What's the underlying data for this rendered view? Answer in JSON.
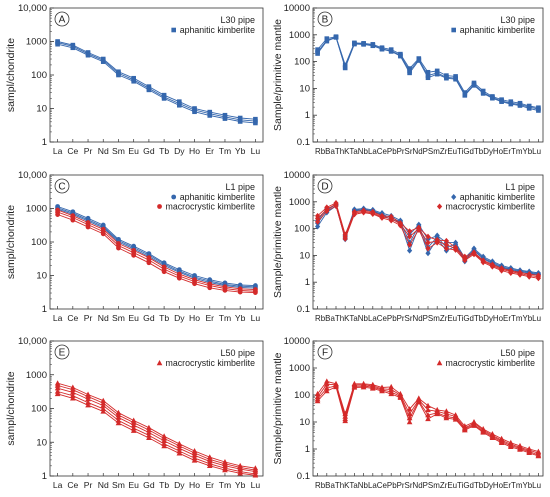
{
  "chart_data": [
    {
      "type": "line",
      "panel": "A",
      "pipe": "L30 pipe",
      "ylabel": "sampl/chondrite",
      "categories": [
        "La",
        "Ce",
        "Pr",
        "Nd",
        "Sm",
        "Eu",
        "Gd",
        "Tb",
        "Dy",
        "Ho",
        "Er",
        "Tm",
        "Yb",
        "Lu"
      ],
      "ylim": [
        1,
        10000
      ],
      "yscale": "log",
      "ytick_labels": [
        "1",
        "10",
        "100",
        "1000",
        "10,000"
      ],
      "legend": [
        {
          "label": "aphanitic kimberlite",
          "marker": "square",
          "color": "#3567ad"
        }
      ],
      "series": [
        {
          "group": "aphanitic kimberlite",
          "values": [
            1000,
            780,
            470,
            300,
            125,
            80,
            45,
            25,
            16,
            10,
            7.8,
            6.3,
            5.2,
            4.8
          ]
        },
        {
          "group": "aphanitic kimberlite",
          "values": [
            920,
            720,
            430,
            275,
            112,
            72,
            40,
            22,
            14,
            9,
            7,
            5.6,
            4.6,
            4.2
          ]
        },
        {
          "group": "aphanitic kimberlite",
          "values": [
            830,
            650,
            390,
            250,
            100,
            65,
            36,
            20,
            12.5,
            8,
            6.2,
            5,
            4.1,
            3.7
          ]
        }
      ]
    },
    {
      "type": "line",
      "panel": "B",
      "pipe": "L30 pipe",
      "ylabel": "Sample/primitive mantle",
      "categories": [
        "Rb",
        "Ba",
        "Th",
        "K",
        "Ta",
        "Nb",
        "La",
        "Ce",
        "Pb",
        "Pr",
        "Sr",
        "Nd",
        "P",
        "Sm",
        "Zr",
        "Eu",
        "Ti",
        "Gd",
        "Tb",
        "Dy",
        "Ho",
        "Er",
        "Tm",
        "Yb",
        "Lu"
      ],
      "category_label_text": "RbBaThKTaNbLaCePbPrSrNdPSmZrEuTiGdTbDyHoErTmYbLu",
      "ylim": [
        0.1,
        10000
      ],
      "yscale": "log",
      "ytick_labels": [
        "0.1",
        "1",
        "10",
        "100",
        "1000",
        "10000"
      ],
      "legend": [
        {
          "label": "aphanitic kimberlite",
          "marker": "square",
          "color": "#3567ad"
        }
      ],
      "series": [
        {
          "group": "aphanitic kimberlite",
          "values": [
            280,
            720,
            850,
            75,
            500,
            480,
            440,
            330,
            280,
            190,
            55,
            130,
            40,
            45,
            30,
            28,
            7,
            16,
            8,
            5,
            3.8,
            3.2,
            2.8,
            2.2,
            1.9
          ]
        },
        {
          "group": "aphanitic kimberlite",
          "values": [
            230,
            620,
            820,
            62,
            470,
            460,
            410,
            300,
            250,
            170,
            45,
            120,
            30,
            38,
            26,
            24,
            6,
            14,
            7,
            4.6,
            3.4,
            2.8,
            2.5,
            2,
            1.7
          ]
        },
        {
          "group": "aphanitic kimberlite",
          "values": [
            200,
            580,
            800,
            58,
            450,
            440,
            390,
            290,
            240,
            160,
            38,
            110,
            25,
            34,
            24,
            22,
            5.5,
            13,
            6.5,
            4.3,
            3.2,
            2.6,
            2.3,
            1.8,
            1.5
          ]
        }
      ]
    },
    {
      "type": "line",
      "panel": "C",
      "pipe": "L1 pipe",
      "ylabel": "sampl/chondrite",
      "categories": [
        "La",
        "Ce",
        "Pr",
        "Nd",
        "Sm",
        "Eu",
        "Gd",
        "Tb",
        "Dy",
        "Ho",
        "Er",
        "Tm",
        "Yb",
        "Lu"
      ],
      "ylim": [
        1,
        10000
      ],
      "yscale": "log",
      "ytick_labels": [
        "1",
        "10",
        "100",
        "1000",
        "10,000"
      ],
      "legend": [
        {
          "label": "aphanitic kimberlite",
          "marker": "circle",
          "color": "#3567ad"
        },
        {
          "label": "macrocrystic kimberlite",
          "marker": "circle",
          "color": "#d42a2a"
        }
      ],
      "series": [
        {
          "group": "aphanitic kimberlite",
          "values": [
            1150,
            800,
            510,
            320,
            120,
            75,
            45,
            24,
            15,
            10,
            7.5,
            6,
            5.2,
            5
          ]
        },
        {
          "group": "aphanitic kimberlite",
          "values": [
            1050,
            730,
            460,
            290,
            110,
            68,
            41,
            22,
            13.5,
            9,
            6.8,
            5.4,
            4.8,
            4.6
          ]
        },
        {
          "group": "aphanitic kimberlite",
          "values": [
            960,
            670,
            420,
            265,
            100,
            62,
            37,
            20,
            12.5,
            8.3,
            6.2,
            5,
            4.4,
            4.2
          ]
        },
        {
          "group": "macrocrystic kimberlite",
          "values": [
            900,
            610,
            380,
            240,
            90,
            56,
            34,
            18,
            11,
            7.5,
            5.6,
            4.6,
            4,
            3.8
          ]
        },
        {
          "group": "macrocrystic kimberlite",
          "values": [
            780,
            540,
            330,
            205,
            78,
            48,
            29,
            15.5,
            9.6,
            6.6,
            5,
            4.1,
            3.6,
            3.4
          ]
        },
        {
          "group": "macrocrystic kimberlite",
          "values": [
            660,
            450,
            280,
            175,
            66,
            40,
            24,
            13,
            8.3,
            5.7,
            4.3,
            3.6,
            3.2,
            3.1
          ]
        }
      ]
    },
    {
      "type": "line",
      "panel": "D",
      "pipe": "L1 pipe",
      "ylabel": "Sample/primitive mantle",
      "categories": [
        "Rb",
        "Ba",
        "Th",
        "K",
        "Ta",
        "Nb",
        "La",
        "Ce",
        "Pb",
        "Pr",
        "Sr",
        "Nd",
        "P",
        "Sm",
        "Zr",
        "Eu",
        "Ti",
        "Gd",
        "Tb",
        "Dy",
        "Ho",
        "Er",
        "Tm",
        "Yb",
        "Lu"
      ],
      "category_label_text": "RbBaThKTaNbLaCePbPrSrNdPSmZrEuTiGdTbDyHoErTmYbLu",
      "ylim": [
        0.1,
        10000
      ],
      "yscale": "log",
      "ytick_labels": [
        "0.1",
        "1",
        "10",
        "100",
        "1000",
        "10000"
      ],
      "legend": [
        {
          "label": "aphanitic kimberlite",
          "marker": "diamond",
          "color": "#3567ad"
        },
        {
          "label": "macrocrystic kimberlite",
          "marker": "diamond",
          "color": "#d42a2a"
        }
      ],
      "series": [
        {
          "group": "aphanitic kimberlite",
          "values": [
            160,
            480,
            800,
            55,
            520,
            560,
            500,
            380,
            300,
            200,
            60,
            140,
            40,
            55,
            30,
            30,
            8,
            18,
            9,
            6,
            4.2,
            3.4,
            2.8,
            2.5,
            2.2
          ]
        },
        {
          "group": "aphanitic kimberlite",
          "values": [
            120,
            400,
            700,
            45,
            480,
            520,
            460,
            340,
            260,
            180,
            30,
            125,
            20,
            48,
            20,
            26,
            7,
            16,
            8,
            5.5,
            3.8,
            3.1,
            2.6,
            2.3,
            2
          ]
        },
        {
          "group": "aphanitic kimberlite",
          "values": [
            200,
            550,
            760,
            40,
            450,
            500,
            440,
            320,
            220,
            170,
            15,
            115,
            12,
            42,
            15,
            22,
            6,
            15,
            7.5,
            5,
            3.5,
            2.9,
            2.4,
            2.1,
            1.9
          ]
        },
        {
          "group": "macrocrystic kimberlite",
          "values": [
            300,
            620,
            900,
            60,
            420,
            480,
            420,
            300,
            280,
            160,
            80,
            110,
            50,
            38,
            35,
            20,
            9,
            13,
            6.5,
            4.6,
            3.3,
            2.7,
            2.3,
            2,
            1.8
          ]
        },
        {
          "group": "macrocrystic kimberlite",
          "values": [
            240,
            520,
            820,
            50,
            380,
            440,
            380,
            270,
            240,
            145,
            50,
            100,
            30,
            34,
            25,
            18,
            7.5,
            12,
            6,
            4.2,
            3,
            2.5,
            2.1,
            1.8,
            1.6
          ]
        },
        {
          "group": "macrocrystic kimberlite",
          "values": [
            180,
            450,
            700,
            42,
            340,
            400,
            350,
            250,
            200,
            130,
            25,
            90,
            18,
            30,
            18,
            16,
            6.5,
            11,
            5.5,
            3.8,
            2.7,
            2.2,
            1.9,
            1.6,
            1.4
          ]
        }
      ]
    },
    {
      "type": "line",
      "panel": "E",
      "pipe": "L50 pipe",
      "ylabel": "sampl/chondrite",
      "categories": [
        "La",
        "Ce",
        "Pr",
        "Nd",
        "Sm",
        "Eu",
        "Gd",
        "Tb",
        "Dy",
        "Ho",
        "Er",
        "Tm",
        "Yb",
        "Lu"
      ],
      "ylim": [
        1,
        10000
      ],
      "yscale": "log",
      "ytick_labels": [
        "1",
        "10",
        "100",
        "1000",
        "10,000"
      ],
      "legend": [
        {
          "label": "macrocrystic kimberlite",
          "marker": "triangle",
          "color": "#d42a2a"
        }
      ],
      "series": [
        {
          "group": "macrocrystic kimberlite",
          "values": [
            560,
            420,
            260,
            170,
            75,
            44,
            27,
            15,
            9,
            5.5,
            3.6,
            2.6,
            2,
            1.7
          ]
        },
        {
          "group": "macrocrystic kimberlite",
          "values": [
            480,
            360,
            225,
            145,
            64,
            38,
            23,
            13,
            7.8,
            4.8,
            3.1,
            2.3,
            1.8,
            1.5
          ]
        },
        {
          "group": "macrocrystic kimberlite",
          "values": [
            400,
            300,
            190,
            122,
            54,
            32,
            19.5,
            11,
            6.6,
            4.1,
            2.7,
            2,
            1.6,
            1.35
          ]
        },
        {
          "group": "macrocrystic kimberlite",
          "values": [
            320,
            240,
            150,
            98,
            44,
            26,
            16,
            9,
            5.5,
            3.4,
            2.3,
            1.7,
            1.35,
            1.15
          ]
        },
        {
          "group": "macrocrystic kimberlite",
          "values": [
            270,
            200,
            125,
            82,
            37,
            22,
            13.5,
            7.7,
            4.7,
            2.9,
            2,
            1.5,
            1.2,
            1.05
          ]
        }
      ]
    },
    {
      "type": "line",
      "panel": "F",
      "pipe": "L50 pipe",
      "ylabel": "Sample/primitive mantle",
      "categories": [
        "Rb",
        "Ba",
        "Th",
        "K",
        "Ta",
        "Nb",
        "La",
        "Ce",
        "Pb",
        "Pr",
        "Sr",
        "Nd",
        "P",
        "Sm",
        "Zr",
        "Eu",
        "Ti",
        "Gd",
        "Tb",
        "Dy",
        "Ho",
        "Er",
        "Tm",
        "Yb",
        "Lu"
      ],
      "category_label_text": "RbBaThKTaNbLaCePbPrSrNdPSmZrEuTiGdTbDyHoErTmYbLu",
      "ylim": [
        0.1,
        10000
      ],
      "yscale": "log",
      "ytick_labels": [
        "0.1",
        "1",
        "10",
        "100",
        "1000",
        "10000"
      ],
      "legend": [
        {
          "label": "macrocrystic kimberlite",
          "marker": "triangle",
          "color": "#d42a2a"
        }
      ],
      "series": [
        {
          "group": "macrocrystic kimberlite",
          "values": [
            110,
            320,
            260,
            20,
            260,
            260,
            240,
            190,
            200,
            110,
            30,
            75,
            40,
            28,
            25,
            18,
            7,
            10,
            5.5,
            3.6,
            2.4,
            1.7,
            1.3,
            1,
            0.8
          ]
        },
        {
          "group": "macrocrystic kimberlite",
          "values": [
            85,
            250,
            240,
            16,
            235,
            240,
            215,
            170,
            160,
            98,
            20,
            66,
            28,
            25,
            20,
            16,
            6,
            9,
            5,
            3.2,
            2.1,
            1.5,
            1.15,
            0.9,
            0.7
          ]
        },
        {
          "group": "macrocrystic kimberlite",
          "values": [
            70,
            180,
            220,
            13,
            210,
            215,
            195,
            155,
            130,
            88,
            14,
            60,
            18,
            22,
            16,
            14,
            5.5,
            8,
            4.5,
            2.9,
            1.9,
            1.35,
            1.05,
            0.8,
            0.6
          ]
        },
        {
          "group": "macrocrystic kimberlite",
          "values": [
            60,
            140,
            200,
            11,
            190,
            195,
            175,
            140,
            110,
            80,
            10,
            54,
            13,
            20,
            14,
            12.5,
            5,
            7.3,
            4.1,
            2.6,
            1.7,
            1.2,
            0.95,
            0.72,
            0.55
          ]
        }
      ]
    }
  ]
}
